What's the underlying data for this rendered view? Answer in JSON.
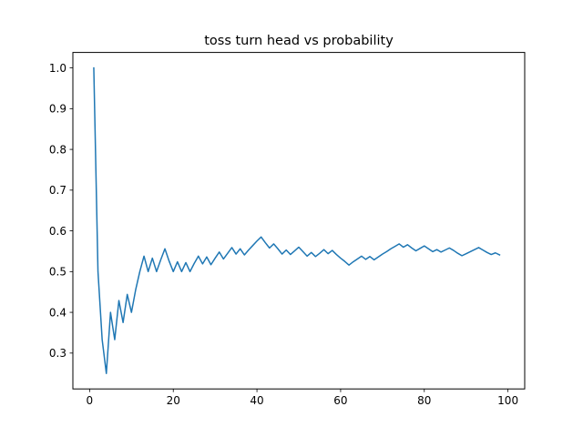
{
  "chart_data": {
    "type": "line",
    "title": "toss turn head vs probability",
    "xlabel": "",
    "ylabel": "",
    "xlim": [
      -4,
      104
    ],
    "ylim": [
      0.212,
      1.038
    ],
    "xticks": [
      0,
      20,
      40,
      60,
      80,
      100
    ],
    "yticks": [
      0.3,
      0.4,
      0.5,
      0.6,
      0.7,
      0.8,
      0.9,
      1.0
    ],
    "ytick_labels": [
      "0.3",
      "0.4",
      "0.5",
      "0.6",
      "0.7",
      "0.8",
      "0.9",
      "1.0"
    ],
    "grid": false,
    "series": [
      {
        "color": "#1f77b4",
        "x": [
          1,
          2,
          3,
          4,
          5,
          6,
          7,
          8,
          9,
          10,
          11,
          12,
          13,
          14,
          15,
          16,
          17,
          18,
          19,
          20,
          21,
          22,
          23,
          24,
          25,
          26,
          27,
          28,
          29,
          30,
          31,
          32,
          33,
          34,
          35,
          36,
          37,
          38,
          39,
          40,
          41,
          42,
          43,
          44,
          45,
          46,
          47,
          48,
          49,
          50,
          51,
          52,
          53,
          54,
          55,
          56,
          57,
          58,
          59,
          60,
          61,
          62,
          63,
          64,
          65,
          66,
          67,
          68,
          69,
          70,
          71,
          72,
          73,
          74,
          75,
          76,
          77,
          78,
          79,
          80,
          81,
          82,
          83,
          84,
          85,
          86,
          87,
          88,
          89,
          90,
          91,
          92,
          93,
          94,
          95,
          96,
          97,
          98
        ],
        "y": [
          1.0,
          0.5,
          0.333,
          0.25,
          0.4,
          0.333,
          0.429,
          0.375,
          0.444,
          0.4,
          0.455,
          0.5,
          0.538,
          0.5,
          0.533,
          0.5,
          0.529,
          0.556,
          0.526,
          0.5,
          0.524,
          0.5,
          0.522,
          0.5,
          0.52,
          0.538,
          0.519,
          0.536,
          0.517,
          0.533,
          0.548,
          0.531,
          0.545,
          0.559,
          0.543,
          0.556,
          0.541,
          0.553,
          0.564,
          0.575,
          0.585,
          0.571,
          0.558,
          0.568,
          0.556,
          0.543,
          0.553,
          0.542,
          0.551,
          0.56,
          0.549,
          0.538,
          0.547,
          0.537,
          0.545,
          0.554,
          0.544,
          0.552,
          0.542,
          0.533,
          0.525,
          0.516,
          0.524,
          0.531,
          0.538,
          0.53,
          0.537,
          0.529,
          0.536,
          0.543,
          0.549,
          0.556,
          0.562,
          0.568,
          0.56,
          0.566,
          0.558,
          0.551,
          0.557,
          0.563,
          0.556,
          0.549,
          0.554,
          0.548,
          0.553,
          0.558,
          0.552,
          0.545,
          0.539,
          0.544,
          0.549,
          0.554,
          0.559,
          0.553,
          0.547,
          0.542,
          0.546,
          0.541
        ]
      }
    ]
  }
}
